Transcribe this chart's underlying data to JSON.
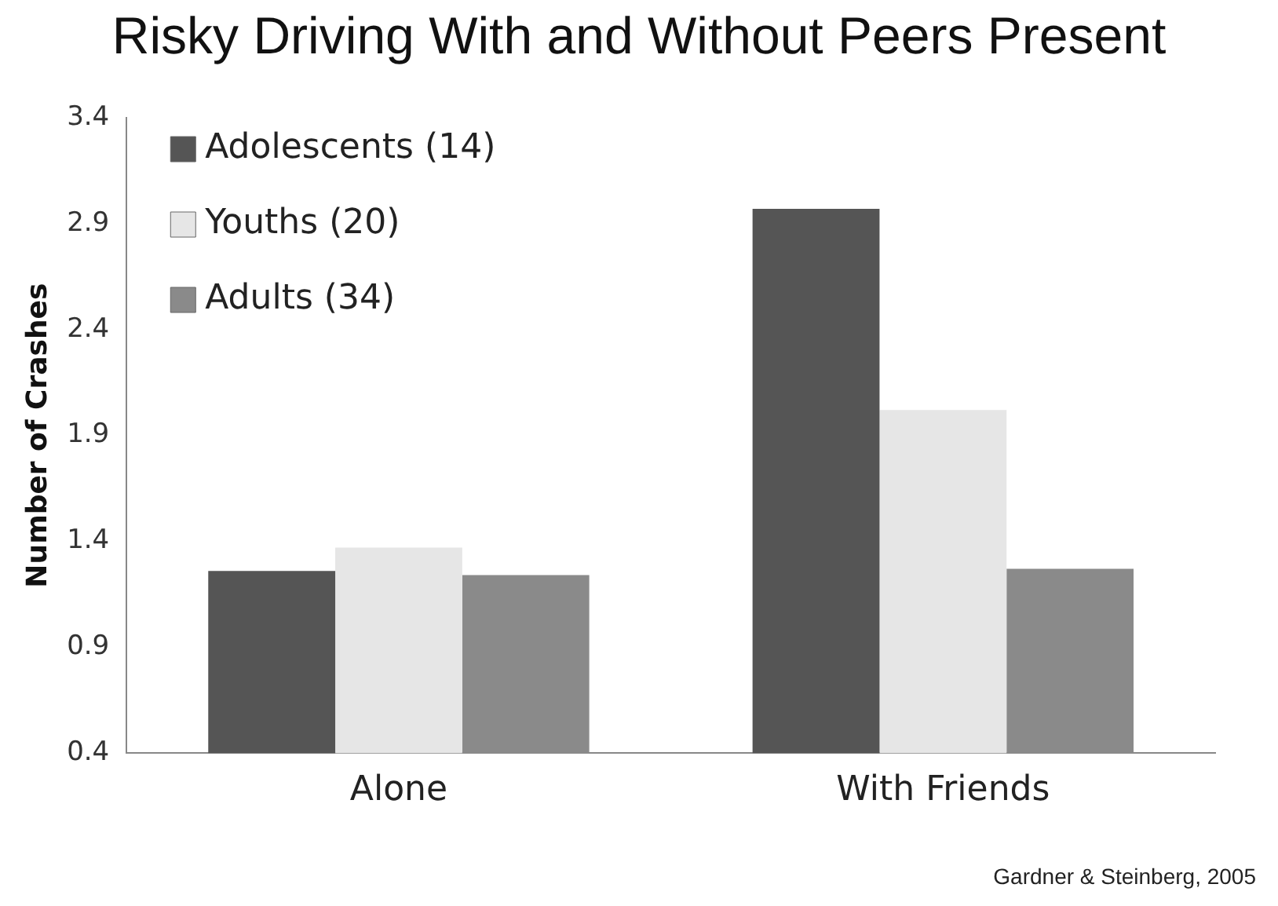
{
  "chart_data": {
    "type": "bar",
    "title": "Risky Driving With and Without Peers Present",
    "ylabel": "Number of Crashes",
    "categories": [
      "Alone",
      "With Friends"
    ],
    "series": [
      {
        "name": "Adolescents (14)",
        "color": "#555555",
        "values": [
          1.26,
          2.97
        ]
      },
      {
        "name": "Youths (20)",
        "color": "#e6e6e6",
        "values": [
          1.37,
          2.02
        ]
      },
      {
        "name": "Adults (34)",
        "color": "#8a8a8a",
        "values": [
          1.24,
          1.27
        ]
      }
    ],
    "ylim": [
      0.4,
      3.4
    ],
    "yticks": [
      0.4,
      0.9,
      1.4,
      1.9,
      2.4,
      2.9,
      3.4
    ],
    "grid": false,
    "legend": "top left",
    "annotations": [
      "Gardner & Steinberg, 2005"
    ]
  }
}
